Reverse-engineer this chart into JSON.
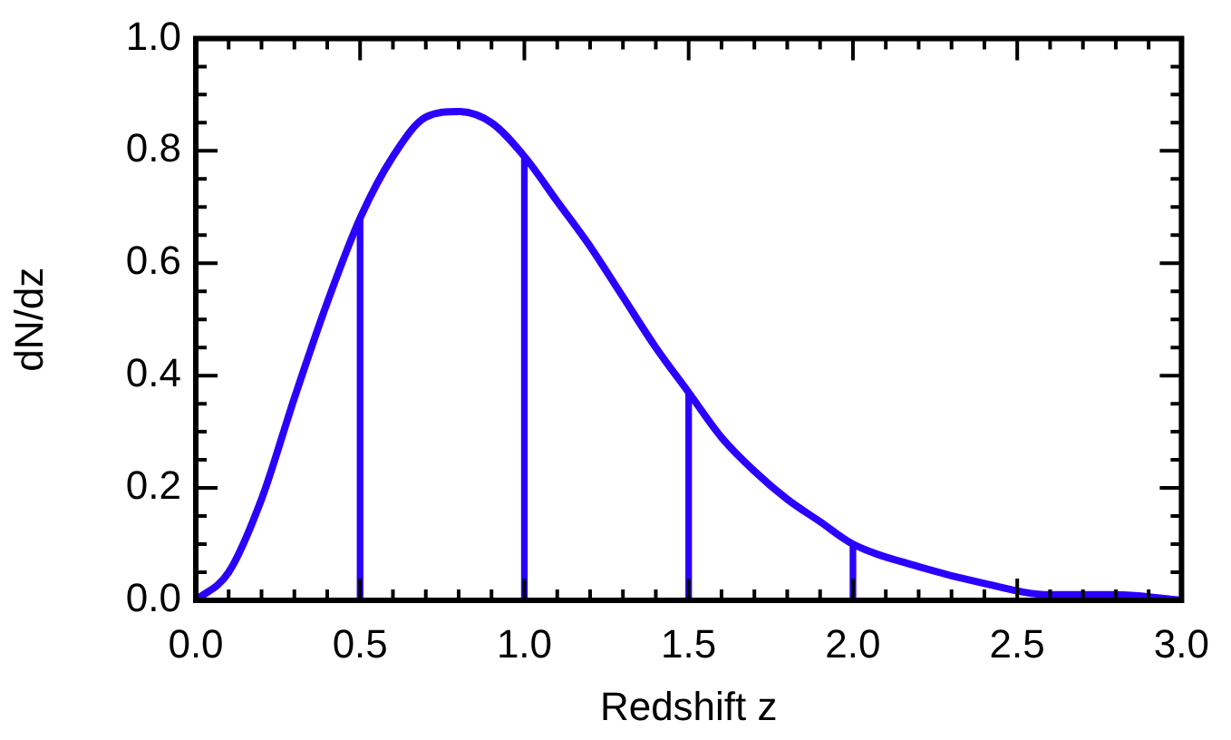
{
  "chart_data": {
    "type": "line",
    "xlabel": "Redshift z",
    "ylabel": "dN/dz",
    "xlim": [
      0,
      3
    ],
    "ylim": [
      0,
      1
    ],
    "xticks": [
      {
        "value": 0,
        "label": "0.0"
      },
      {
        "value": 0.1,
        "label": null
      },
      {
        "value": 0.2,
        "label": null
      },
      {
        "value": 0.3,
        "label": null
      },
      {
        "value": 0.4,
        "label": null
      },
      {
        "value": 0.5,
        "label": "0.5"
      },
      {
        "value": 0.6,
        "label": null
      },
      {
        "value": 0.7,
        "label": null
      },
      {
        "value": 0.8,
        "label": null
      },
      {
        "value": 0.9,
        "label": null
      },
      {
        "value": 1,
        "label": "1.0"
      },
      {
        "value": 1.1,
        "label": null
      },
      {
        "value": 1.2,
        "label": null
      },
      {
        "value": 1.3,
        "label": null
      },
      {
        "value": 1.4,
        "label": null
      },
      {
        "value": 1.5,
        "label": "1.5"
      },
      {
        "value": 1.6,
        "label": null
      },
      {
        "value": 1.7,
        "label": null
      },
      {
        "value": 1.8,
        "label": null
      },
      {
        "value": 1.9,
        "label": null
      },
      {
        "value": 2,
        "label": "2.0"
      },
      {
        "value": 2.1,
        "label": null
      },
      {
        "value": 2.2,
        "label": null
      },
      {
        "value": 2.3,
        "label": null
      },
      {
        "value": 2.4,
        "label": null
      },
      {
        "value": 2.5,
        "label": "2.5"
      },
      {
        "value": 2.6,
        "label": null
      },
      {
        "value": 2.7,
        "label": null
      },
      {
        "value": 2.8,
        "label": null
      },
      {
        "value": 2.9,
        "label": null
      },
      {
        "value": 3,
        "label": "3.0"
      }
    ],
    "yticks": [
      {
        "value": 0,
        "label": "0.0"
      },
      {
        "value": 0.05,
        "label": null
      },
      {
        "value": 0.1,
        "label": null
      },
      {
        "value": 0.15,
        "label": null
      },
      {
        "value": 0.2,
        "label": "0.2"
      },
      {
        "value": 0.25,
        "label": null
      },
      {
        "value": 0.3,
        "label": null
      },
      {
        "value": 0.35,
        "label": null
      },
      {
        "value": 0.4,
        "label": "0.4"
      },
      {
        "value": 0.45,
        "label": null
      },
      {
        "value": 0.5,
        "label": null
      },
      {
        "value": 0.55,
        "label": null
      },
      {
        "value": 0.6,
        "label": "0.6"
      },
      {
        "value": 0.65,
        "label": null
      },
      {
        "value": 0.7,
        "label": null
      },
      {
        "value": 0.75,
        "label": null
      },
      {
        "value": 0.8,
        "label": "0.8"
      },
      {
        "value": 0.85,
        "label": null
      },
      {
        "value": 0.9,
        "label": null
      },
      {
        "value": 0.95,
        "label": null
      },
      {
        "value": 1,
        "label": "1.0"
      }
    ],
    "grid": false,
    "legend": false,
    "marker": "none",
    "line_style": "solid",
    "series": [
      {
        "color": "#2a00ff",
        "x": [
          0,
          0.1,
          0.2,
          0.3,
          0.4,
          0.5,
          0.6,
          0.7,
          0.8,
          0.9,
          1.0,
          1.1,
          1.2,
          1.3,
          1.4,
          1.5,
          1.6,
          1.7,
          1.8,
          1.9,
          2.0,
          2.2,
          2.4,
          2.6,
          2.8,
          3.0
        ],
        "values": [
          0,
          0.05,
          0.18,
          0.36,
          0.53,
          0.68,
          0.79,
          0.86,
          0.87,
          0.85,
          0.79,
          0.71,
          0.63,
          0.54,
          0.45,
          0.37,
          0.29,
          0.23,
          0.18,
          0.14,
          0.1,
          0.06,
          0.03,
          0.01,
          0.01,
          0
        ]
      },
      {
        "type": "bar",
        "color": "#2a00ff",
        "x": [
          0.5,
          1.0,
          1.5,
          2.0
        ],
        "values": [
          0.68,
          0.79,
          0.37,
          0.1
        ]
      }
    ]
  }
}
